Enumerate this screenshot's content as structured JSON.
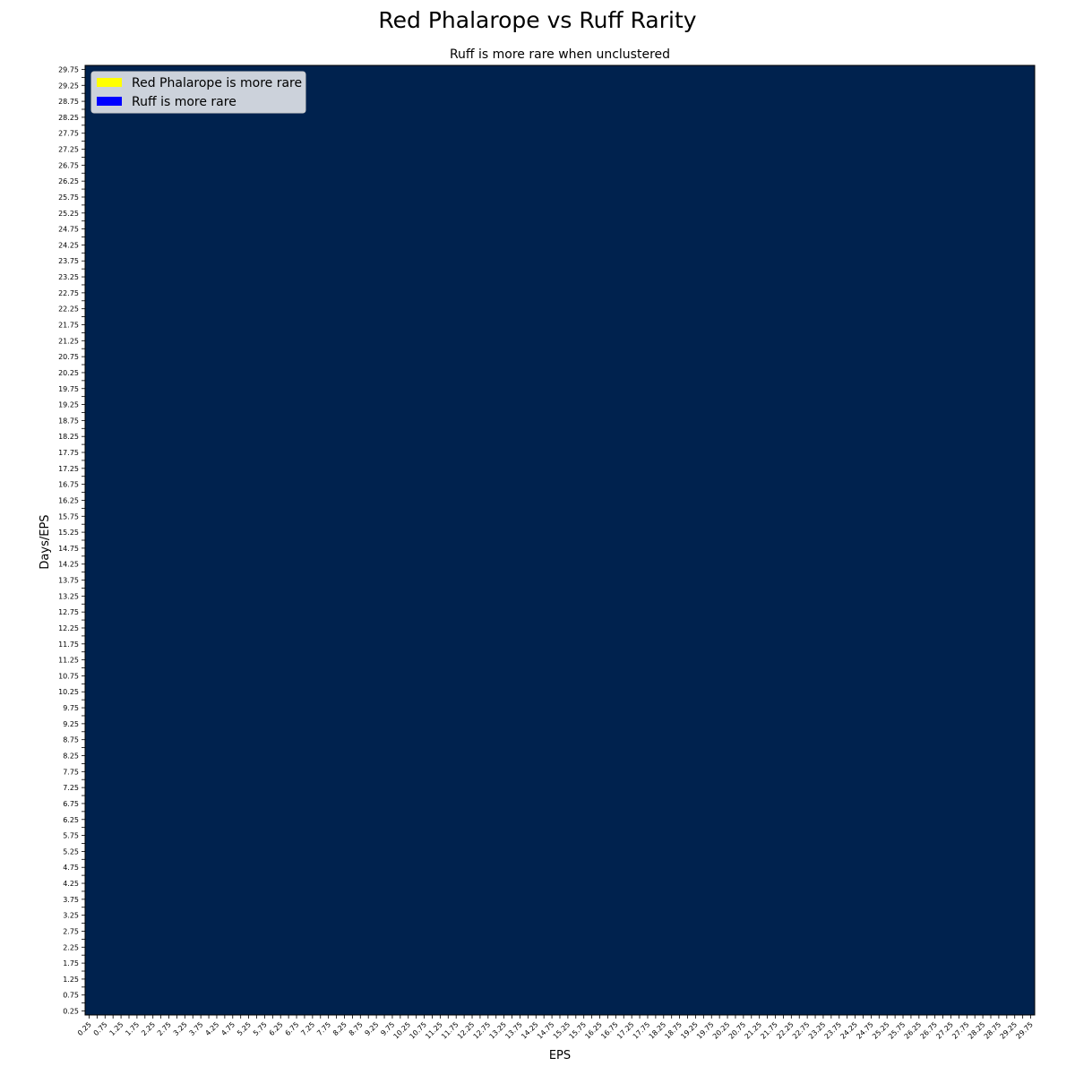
{
  "chart_data": {
    "type": "heatmap",
    "title": "Red Phalarope vs Ruff Rarity",
    "subtitle": "Ruff is more rare when unclustered",
    "xlabel": "EPS",
    "ylabel": "Days/EPS",
    "x_start": 0.25,
    "x_step": 0.25,
    "x_count": 119,
    "y_start": 0.25,
    "y_step": 0.25,
    "y_count": 119,
    "label_every": 2,
    "grid": false,
    "legend_position": "top-left",
    "legend": [
      {
        "label": "Red Phalarope is more rare",
        "color": "#ffff00"
      },
      {
        "label": "Ruff is more rare",
        "color": "#0000ff"
      }
    ],
    "fill_value": "Ruff is more rare",
    "fill_color": "#00224e"
  }
}
